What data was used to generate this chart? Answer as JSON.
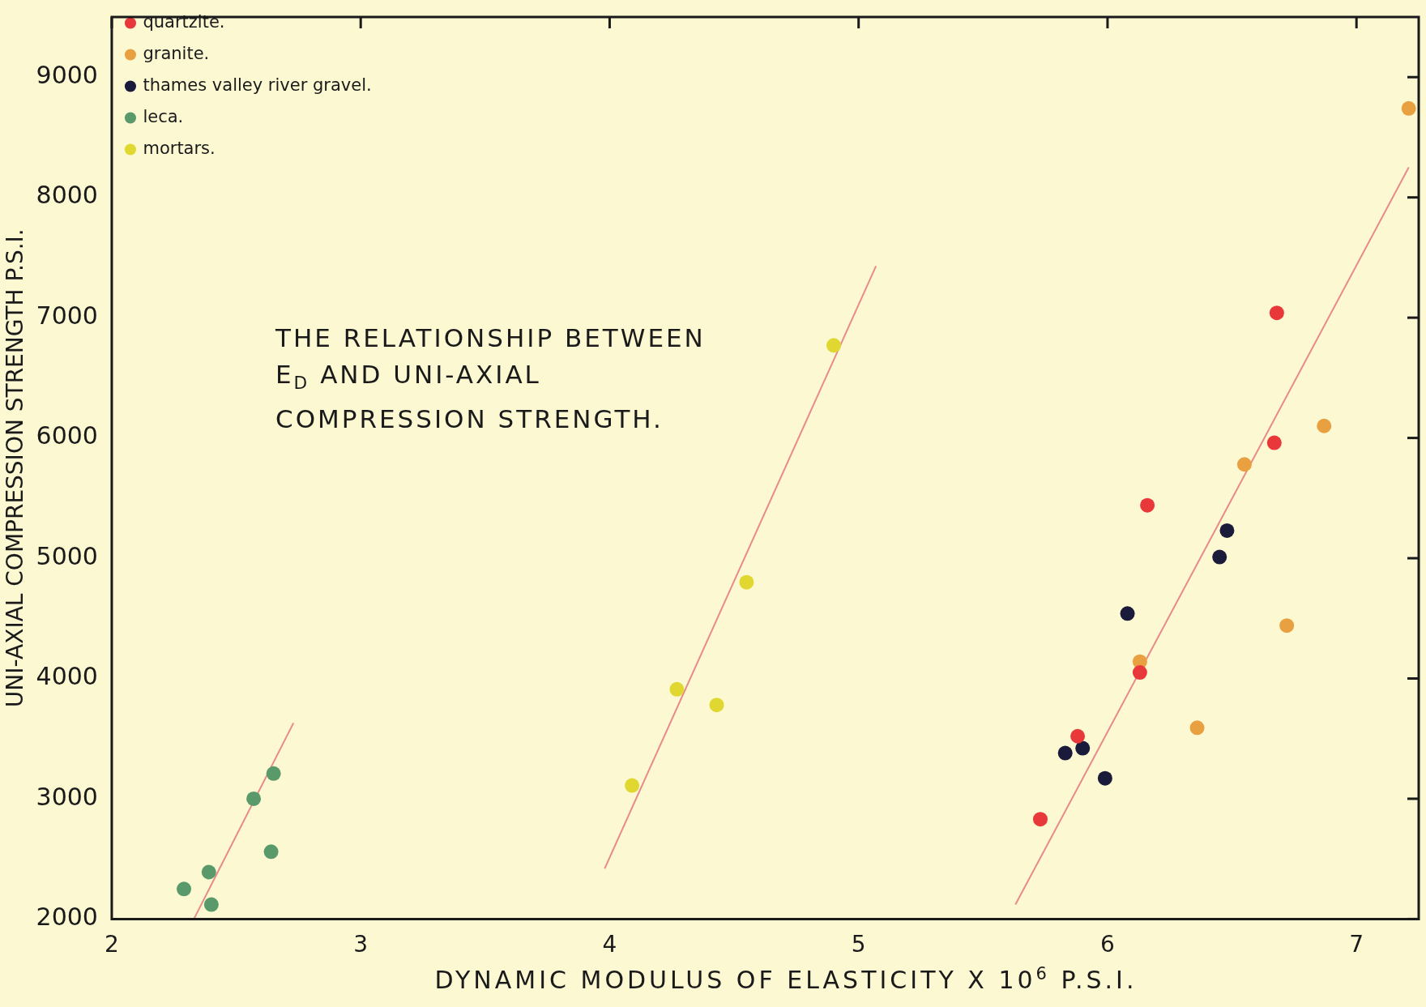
{
  "chart_data": {
    "type": "scatter",
    "title": "THE RELATIONSHIP BETWEEN E$_{D}$ AND UNI-AXIAL COMPRESSION STRENGTH.",
    "xlabel": "DYNAMIC MODULUS OF ELASTICITY X 10$^{6}$ P.S.I.",
    "ylabel": "UNI-AXIAL COMPRESSION STRENGTH P.S.I.",
    "xlim": [
      2,
      7.25
    ],
    "xticks": [
      2,
      3,
      4,
      5,
      6,
      7
    ],
    "ylim": [
      2000,
      9500
    ],
    "yticks": [
      2000,
      3000,
      4000,
      5000,
      6000,
      7000,
      8000,
      9000
    ],
    "grid": false,
    "legend": "top left",
    "marker": "circle",
    "series": [
      {
        "name": "quartzite.",
        "color": "#e8383a",
        "x": [
          5.73,
          5.88,
          6.13,
          6.16,
          6.67,
          6.68
        ],
        "values": [
          2830,
          3520,
          4050,
          5440,
          5960,
          7040
        ]
      },
      {
        "name": "granite.",
        "color": "#e8a040",
        "x": [
          6.13,
          6.36,
          6.55,
          6.72,
          6.87,
          7.21
        ],
        "values": [
          4140,
          3590,
          5780,
          4440,
          6100,
          8740
        ]
      },
      {
        "name": "thames valley river gravel.",
        "color": "#1a1a3a",
        "x": [
          5.83,
          5.9,
          5.99,
          6.08,
          6.45,
          6.48
        ],
        "values": [
          3380,
          3420,
          3170,
          4540,
          5010,
          5230
        ]
      },
      {
        "name": "leca.",
        "color": "#5a9a6a",
        "x": [
          2.29,
          2.39,
          2.4,
          2.57,
          2.64,
          2.65
        ],
        "values": [
          2250,
          2390,
          2120,
          3000,
          2560,
          3210
        ]
      },
      {
        "name": "mortars.",
        "color": "#e0d830",
        "x": [
          4.09,
          4.27,
          4.43,
          4.55,
          4.9
        ],
        "values": [
          3110,
          3910,
          3780,
          4800,
          6770
        ]
      },
      {
        "type": "line",
        "color": "#e88a8a",
        "marker": "none",
        "x": [
          2.33,
          2.73
        ],
        "values": [
          2000,
          3630
        ]
      },
      {
        "type": "line",
        "color": "#e88a8a",
        "marker": "none",
        "x": [
          3.98,
          5.07
        ],
        "values": [
          2420,
          7430
        ]
      },
      {
        "type": "line",
        "color": "#e88a8a",
        "marker": "none",
        "x": [
          5.63,
          7.21
        ],
        "values": [
          2120,
          8250
        ]
      }
    ]
  }
}
